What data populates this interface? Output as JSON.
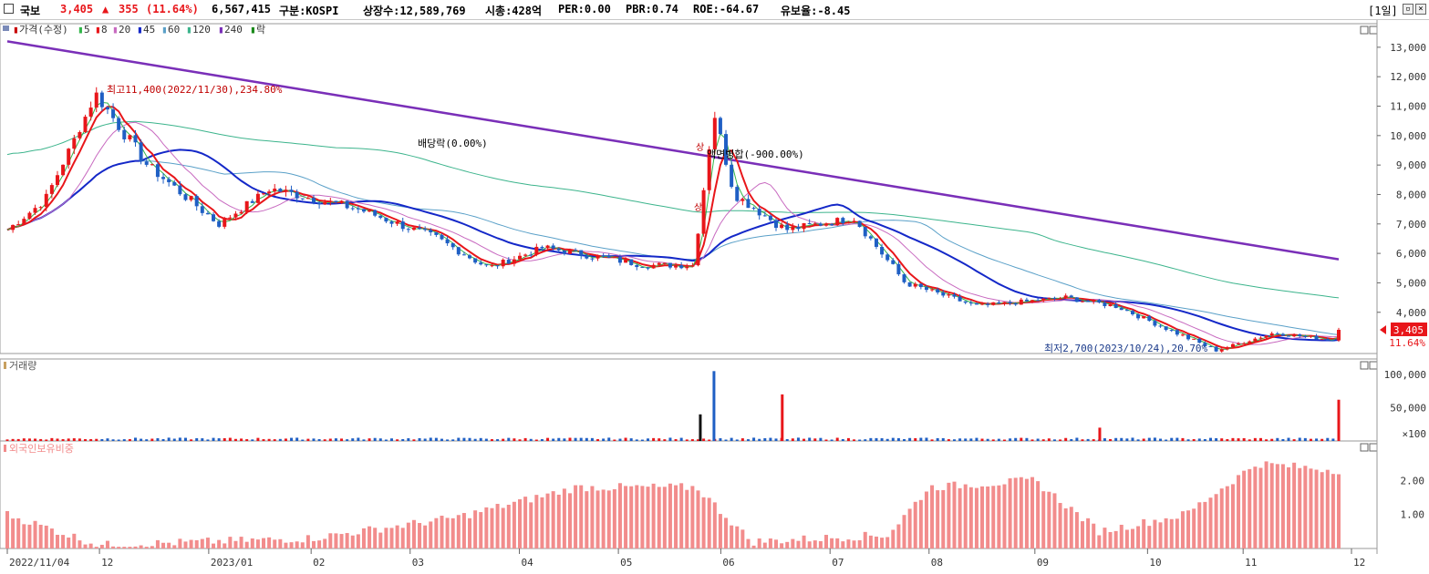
{
  "header": {
    "stock_name": "국보",
    "price": "3,405",
    "change_arrow": "▲",
    "change": "355",
    "change_pct": "(11.64%)",
    "volume": "6,567,415",
    "market": "구분:KOSPI",
    "shares": "상장수:12,589,769",
    "market_cap": "시총:428억",
    "per": "PER:0.00",
    "pbr": "PBR:0.74",
    "roe": "ROE:-64.67",
    "float_ratio": "유보율:-8.45",
    "period": "[1일]"
  },
  "colors": {
    "up": "#e8161a",
    "down": "#1f5fc4",
    "ma5": "#33b64a",
    "ma8": "#e8161a",
    "ma20": "#c86ac0",
    "ma45": "#1428c8",
    "ma60": "#5aa0c8",
    "ma120": "#3cb48c",
    "ma240": "#7a2fb8",
    "foreign": "#f28c8c"
  },
  "price_panel": {
    "legend": [
      {
        "marker": "▮",
        "label": "가격(수정)",
        "color": "#c80000"
      },
      {
        "marker": "▮",
        "label": "5",
        "color": "#33b64a"
      },
      {
        "marker": "▮",
        "label": "8",
        "color": "#e8161a"
      },
      {
        "marker": "▮",
        "label": "20",
        "color": "#c86ac0"
      },
      {
        "marker": "▮",
        "label": "45",
        "color": "#1428c8"
      },
      {
        "marker": "▮",
        "label": "60",
        "color": "#5aa0c8"
      },
      {
        "marker": "▮",
        "label": "120",
        "color": "#3cb48c"
      },
      {
        "marker": "▮",
        "label": "240",
        "color": "#7a2fb8"
      },
      {
        "marker": "▮",
        "label": "락",
        "color": "#1a8a1a"
      }
    ],
    "y_ticks": [
      "13,000",
      "12,000",
      "11,000",
      "10,000",
      "9,000",
      "8,000",
      "7,000",
      "6,000",
      "5,000",
      "4,000"
    ],
    "y_tick_values": [
      13000,
      12000,
      11000,
      10000,
      9000,
      8000,
      7000,
      6000,
      5000,
      4000
    ],
    "ylim": [
      2600,
      13800
    ],
    "current_price_label": "3,405",
    "current_price": 3405,
    "current_pct_label": "11.64%",
    "annotations": {
      "high": "최고11,400(2022/11/30),234.80%",
      "low": "최저2,700(2023/10/24),20.70%",
      "dividend": "배당락(0.00%)",
      "reverse_split": "액면병합(-900.00%)",
      "limit_up_1": "상",
      "limit_up_2": "상"
    }
  },
  "volume_panel": {
    "title": "거래량",
    "y_ticks": [
      "100,000",
      "50,000",
      "×100"
    ],
    "y_tick_values": [
      100000,
      50000,
      0
    ],
    "ylim": [
      0,
      115000
    ]
  },
  "foreign_panel": {
    "title": "외국인보유비중",
    "y_ticks": [
      "2.00",
      "1.00"
    ],
    "y_tick_values": [
      2.0,
      1.0
    ],
    "ylim": [
      0,
      3.0
    ]
  },
  "x_axis": {
    "labels": [
      "2022/11/04",
      "12",
      "2023/01",
      "02",
      "03",
      "04",
      "05",
      "06",
      "07",
      "08",
      "09",
      "10",
      "11",
      "12"
    ]
  },
  "chart_data": {
    "type": "candlestick",
    "title": "",
    "x": "trading days 2022/11/04 – 2023/11/29",
    "price_keypoints": [
      {
        "date": "2022/11/04",
        "value": 6800
      },
      {
        "date": "2022/11/15",
        "value": 7800
      },
      {
        "date": "2022/11/30",
        "value": 11400
      },
      {
        "date": "2022/12/15",
        "value": 9000
      },
      {
        "date": "2023/01/05",
        "value": 7000
      },
      {
        "date": "2023/01/20",
        "value": 8200
      },
      {
        "date": "2023/02/15",
        "value": 7500
      },
      {
        "date": "2023/03/10",
        "value": 6500
      },
      {
        "date": "2023/03/25",
        "value": 5500
      },
      {
        "date": "2023/04/10",
        "value": 6200
      },
      {
        "date": "2023/05/10",
        "value": 5600
      },
      {
        "date": "2023/05/24",
        "value": 5600
      },
      {
        "date": "2023/05/30",
        "value": 10800
      },
      {
        "date": "2023/06/05",
        "value": 8000
      },
      {
        "date": "2023/06/20",
        "value": 6800
      },
      {
        "date": "2023/07/10",
        "value": 7200
      },
      {
        "date": "2023/07/25",
        "value": 5000
      },
      {
        "date": "2023/08/15",
        "value": 4200
      },
      {
        "date": "2023/09/10",
        "value": 4500
      },
      {
        "date": "2023/09/25",
        "value": 4200
      },
      {
        "date": "2023/10/24",
        "value": 2700
      },
      {
        "date": "2023/11/10",
        "value": 3300
      },
      {
        "date": "2023/11/28",
        "value": 3050
      },
      {
        "date": "2023/11/29",
        "value": 3405
      }
    ],
    "ma240_start": 13200,
    "ma240_end": 5800,
    "volume_spikes": [
      {
        "date": "2023/05/26",
        "value": 40000,
        "color": "black"
      },
      {
        "date": "2023/05/30",
        "value": 105000
      },
      {
        "date": "2023/06/19",
        "value": 70000
      },
      {
        "date": "2023/09/20",
        "value": 20000
      },
      {
        "date": "2023/11/29",
        "value": 62000
      }
    ],
    "foreign_keypoints": [
      {
        "date": "2022/11/04",
        "value": 1.0
      },
      {
        "date": "2022/12/01",
        "value": 0.1
      },
      {
        "date": "2023/02/01",
        "value": 0.3
      },
      {
        "date": "2023/03/15",
        "value": 0.9
      },
      {
        "date": "2023/04/20",
        "value": 1.8
      },
      {
        "date": "2023/05/25",
        "value": 1.8
      },
      {
        "date": "2023/06/10",
        "value": 0.2
      },
      {
        "date": "2023/07/20",
        "value": 0.4
      },
      {
        "date": "2023/08/01",
        "value": 1.8
      },
      {
        "date": "2023/09/01",
        "value": 2.0
      },
      {
        "date": "2023/09/20",
        "value": 0.5
      },
      {
        "date": "2023/10/15",
        "value": 1.0
      },
      {
        "date": "2023/11/05",
        "value": 2.5
      },
      {
        "date": "2023/11/29",
        "value": 2.3
      }
    ]
  }
}
